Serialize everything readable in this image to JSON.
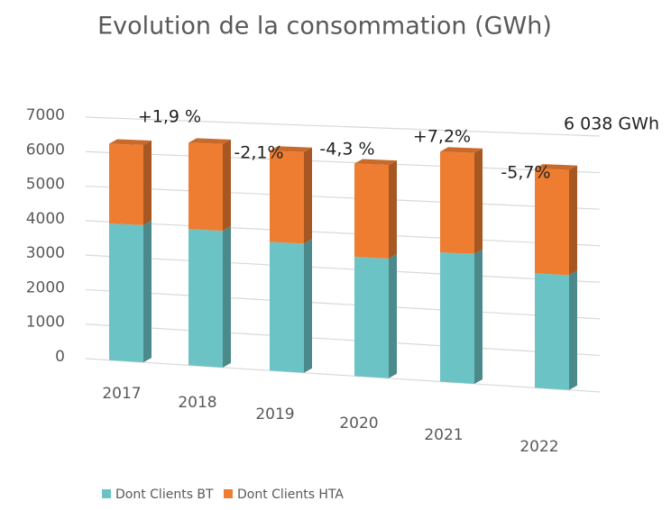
{
  "chart_data": {
    "type": "bar3d",
    "title": "Evolution de la consommation (GWh)",
    "categories": [
      "2017",
      "2018",
      "2019",
      "2020",
      "2021",
      "2022"
    ],
    "series": [
      {
        "name": "Dont Clients BT",
        "color": "#6cc3c5",
        "values": [
          3950,
          3900,
          3650,
          3350,
          3600,
          3150
        ]
      },
      {
        "name": "Dont Clients HTA",
        "color": "#ee7d31",
        "values": [
          2306,
          2475,
          2591,
          2623,
          2803,
          2888
        ]
      }
    ],
    "stacked": true,
    "ylim": [
      0,
      7000
    ],
    "yticks": [
      0,
      1000,
      2000,
      3000,
      4000,
      5000,
      6000,
      7000
    ],
    "grid": true,
    "annotations": [
      "+1,9 %",
      "-2,1%",
      "-4,3 %",
      "+7,2%",
      "-5,7%",
      "6 038 GWh"
    ],
    "legend": "bottom"
  }
}
